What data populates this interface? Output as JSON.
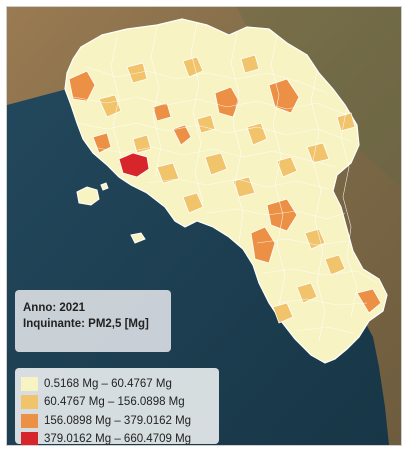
{
  "info": {
    "year_line": "Anno: 2021",
    "pollutant_line": "Inquinante: PM2,5 [Mg]"
  },
  "legend": [
    {
      "label": "0.5168 Mg – 60.4767 Mg",
      "color": "#f7f3c2"
    },
    {
      "label": "60.4767 Mg – 156.0898 Mg",
      "color": "#f1c36b"
    },
    {
      "label": "156.0898 Mg – 379.0162 Mg",
      "color": "#ec9045"
    },
    {
      "label": "379.0162 Mg – 660.4709 Mg",
      "color": "#d7262b"
    }
  ],
  "colors": {
    "sea": "#1d3f52",
    "land_terrain": "#8a6a46",
    "region_base": "#f7f3c2",
    "border": "#ffffff"
  }
}
